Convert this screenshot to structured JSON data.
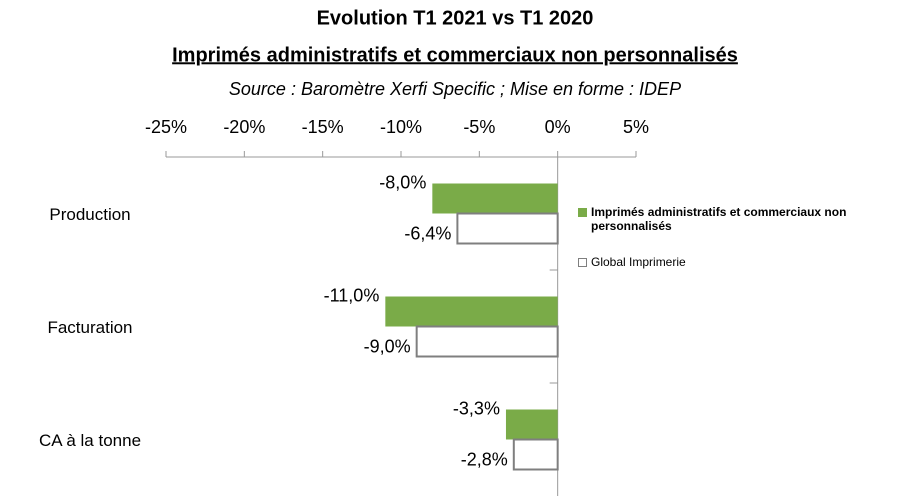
{
  "chart_data": {
    "type": "hbar",
    "title": "Evolution T1 2021 vs  T1 2020",
    "subtitle": "Imprimés administratifs et commerciaux non personnalisés",
    "source": "Source : Baromètre Xerfi Specific ; Mise en forme : IDEP",
    "categories": [
      "Production",
      "Facturation",
      "CA à la tonne"
    ],
    "series": [
      {
        "name": "Imprimés administratifs et commerciaux non personnalisés",
        "color": "#7aab48",
        "values": [
          -8.0,
          -11.0,
          -3.3
        ],
        "value_labels": [
          "-8,0%",
          "-11,0%",
          "-3,3%"
        ]
      },
      {
        "name": "Global Imprimerie",
        "color": "#ffffff",
        "values": [
          -6.4,
          -9.0,
          -2.8
        ],
        "value_labels": [
          "-6,4%",
          "-9,0%",
          "-2,8%"
        ]
      }
    ],
    "xlim": [
      -25,
      5
    ],
    "xticks": [
      {
        "value": -25,
        "label": "-25%"
      },
      {
        "value": -20,
        "label": "-20%"
      },
      {
        "value": -15,
        "label": "-15%"
      },
      {
        "value": -10,
        "label": "-10%"
      },
      {
        "value": -5,
        "label": "-5%"
      },
      {
        "value": 0,
        "label": "0%"
      },
      {
        "value": 5,
        "label": "5%"
      }
    ],
    "legend": "right"
  }
}
